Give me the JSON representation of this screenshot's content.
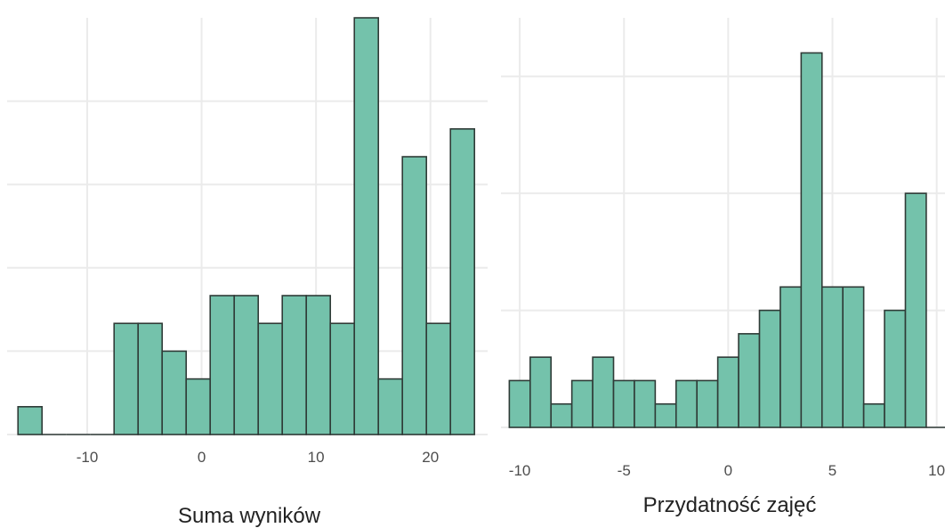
{
  "colors": {
    "bar_fill": "#74c2ab",
    "bar_outline": "#2f3b37",
    "grid": "#ebebeb"
  },
  "chart_data": [
    {
      "type": "bar",
      "xlabel": "Suma wyników",
      "ylabel": "",
      "x_ticks": [
        -10,
        0,
        10,
        20
      ],
      "xlim": [
        -17,
        25
      ],
      "ylim": [
        0,
        15
      ],
      "grid": true,
      "bin_width": 2.1,
      "bins_x": [
        -15.0,
        -12.9,
        -10.8,
        -8.7,
        -6.6,
        -4.5,
        -2.4,
        -0.3,
        1.8,
        3.9,
        6.0,
        8.1,
        10.2,
        12.3,
        14.4,
        16.5,
        18.6,
        20.7,
        22.8
      ],
      "values": [
        1,
        0,
        0,
        0,
        4,
        4,
        3,
        2,
        5,
        5,
        4,
        5,
        5,
        4,
        15,
        2,
        10,
        4,
        11
      ]
    },
    {
      "type": "bar",
      "xlabel": "Przydatność zajęć",
      "ylabel": "",
      "x_ticks": [
        -10,
        -5,
        0,
        5,
        10
      ],
      "xlim": [
        -10.9,
        10.4
      ],
      "ylim": [
        0,
        17.5
      ],
      "grid": true,
      "bin_width": 1.0,
      "bins_x": [
        -10,
        -9,
        -8,
        -7,
        -6,
        -5,
        -4,
        -3,
        -2,
        -1,
        0,
        1,
        2,
        3,
        4,
        5,
        6,
        7,
        8,
        9,
        10
      ],
      "values": [
        2,
        3,
        1,
        2,
        3,
        2,
        2,
        1,
        2,
        2,
        3,
        4,
        5,
        6,
        16,
        6,
        6,
        1,
        5,
        10,
        0
      ]
    }
  ]
}
